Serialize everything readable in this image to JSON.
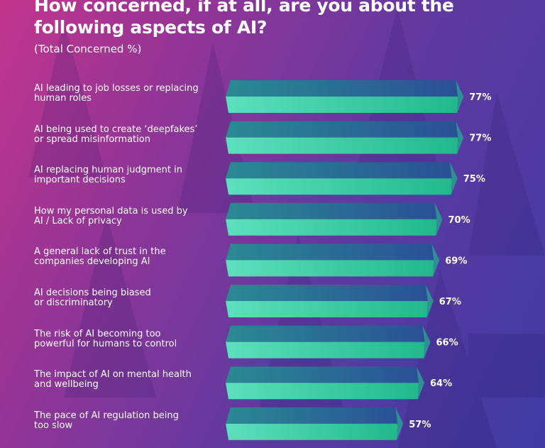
{
  "chart_data": {
    "type": "bar",
    "orientation": "horizontal",
    "title": "How concerned, if at all, are you about the following aspects of AI?",
    "subtitle": "(Total Concerned %)",
    "categories": [
      "AI leading to job losses or replacing human roles",
      "AI being used to create ‘deepfakes’ or spread misinformation",
      "AI replacing human judgment in important decisions",
      "How my personal data is used by AI / Lack of privacy",
      "A general lack of trust in the companies developing AI",
      "AI decisions being biased or discriminatory",
      "The risk of AI becoming too powerful for humans to control",
      "The impact of AI on mental health and wellbeing",
      "The pace of AI regulation being too slow"
    ],
    "category_lines": [
      [
        "AI leading to job losses or replacing",
        "human roles"
      ],
      [
        "AI being used to create ‘deepfakes’",
        "or spread misinformation"
      ],
      [
        "AI replacing human judgment in",
        "important decisions"
      ],
      [
        "How my personal data is used by",
        "AI / Lack of privacy"
      ],
      [
        "A general lack of trust in the",
        "companies developing AI"
      ],
      [
        "AI decisions being biased",
        "or discriminatory"
      ],
      [
        "The risk of AI becoming too",
        "powerful for humans to control"
      ],
      [
        "The impact of AI on mental health",
        "and wellbeing"
      ],
      [
        "The pace of AI regulation being",
        "too slow"
      ]
    ],
    "values": [
      77,
      77,
      75,
      70,
      69,
      67,
      66,
      64,
      57
    ],
    "value_labels": [
      "77%",
      "77%",
      "75%",
      "70%",
      "69%",
      "67%",
      "66%",
      "64%",
      "57%"
    ],
    "unit": "%",
    "xlim": [
      0,
      100
    ],
    "grid": false,
    "colors": {
      "bar_top": "#2a5f96",
      "bar_top_left": "#2a8a92",
      "bar_bottom": "#22b88c",
      "bar_bottom_left": "#5de0bd",
      "bar_side": "#2f8f95"
    }
  }
}
